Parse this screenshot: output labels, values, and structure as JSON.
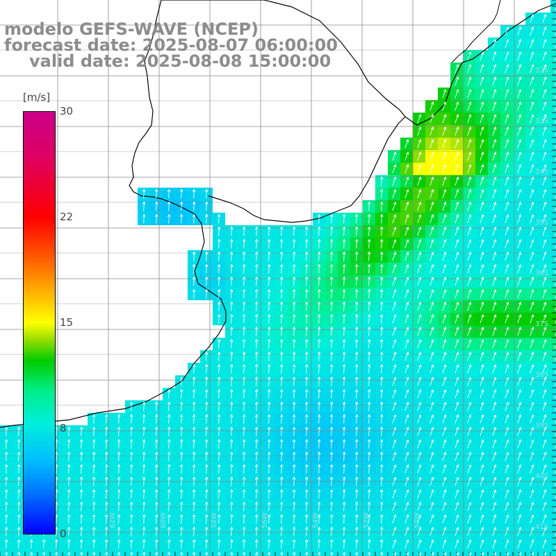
{
  "title_lines": {
    "model": "modelo GEFS-WAVE (NCEP)",
    "forecast": "forecast date: 2025-08-07 06:00:00",
    "valid": "valid date: 2025-08-08 15:00:00"
  },
  "colorbar": {
    "unit": "[m/s]",
    "ticks": [
      "30",
      "22",
      "15",
      "8",
      "0"
    ],
    "tick_values": [
      30,
      22,
      15,
      8,
      0
    ],
    "range": [
      0,
      30
    ],
    "colors": [
      "#0000ff",
      "#0077ff",
      "#00bbff",
      "#00eedd",
      "#00ee88",
      "#00cc00",
      "#ffff00",
      "#ff5500",
      "#ff0000",
      "#cc0088"
    ]
  },
  "lat_labels": [
    "32S",
    "33S",
    "34S",
    "35S",
    "36S",
    "37S",
    "38S",
    "39S",
    "40S",
    "41S"
  ],
  "lon_labels": [
    "62W",
    "60W",
    "58W",
    "56W",
    "54W",
    "52W",
    "50W"
  ],
  "map_colors": {
    "land": "#ffffff",
    "grid": "#888888",
    "coast": "#000000",
    "arrow": "#ffffff"
  }
}
